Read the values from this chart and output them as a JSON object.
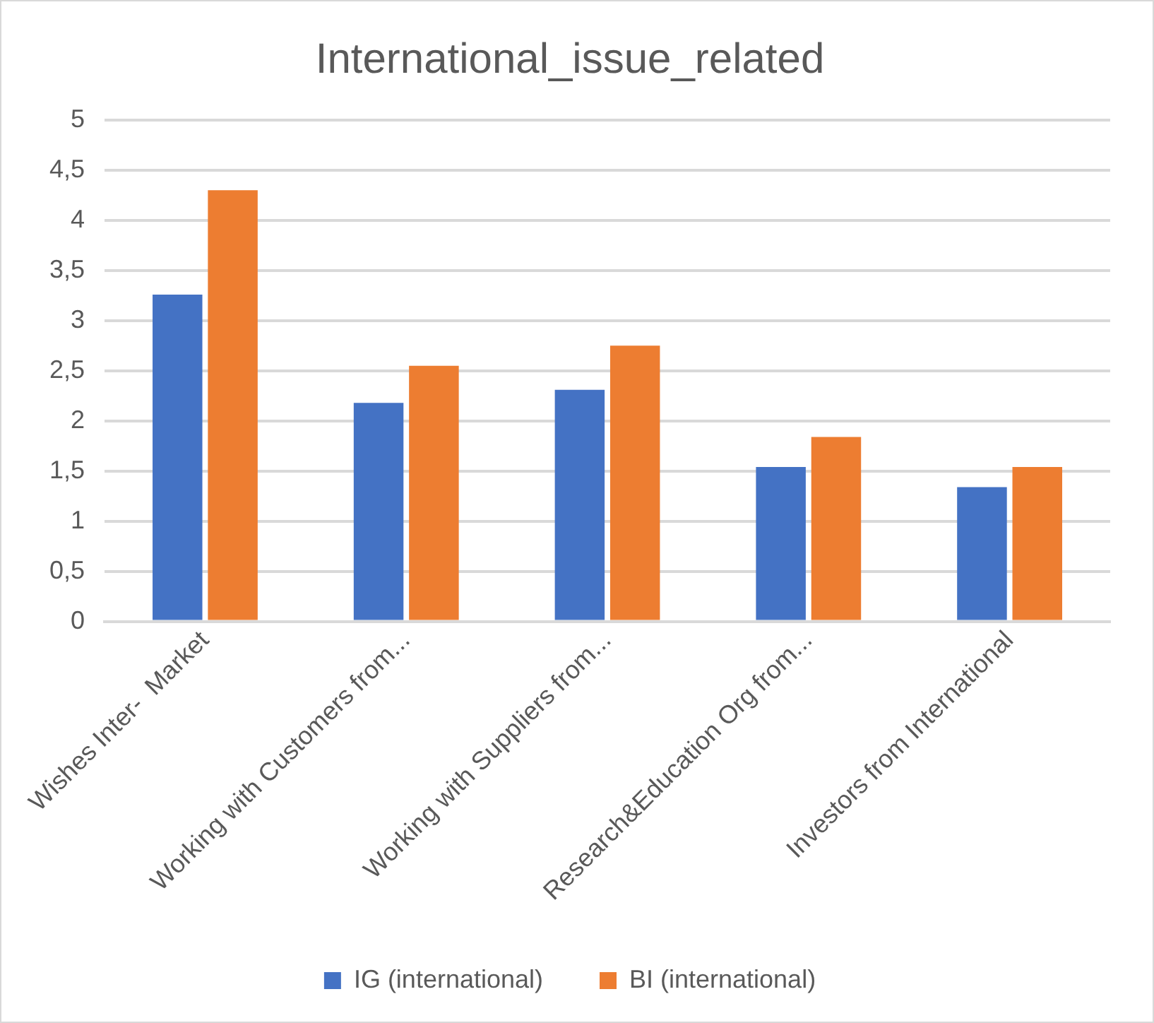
{
  "chart_data": {
    "type": "bar",
    "title": "International_issue_related",
    "categories": [
      "Wishes Inter-  Market",
      "Working with Customers from...",
      "Working with Suppliers from...",
      "Research&Education Org from...",
      "Investors from International"
    ],
    "series": [
      {
        "name": "IG (international)",
        "color": "#4472c4",
        "values": [
          3.26,
          2.18,
          2.31,
          1.54,
          1.34
        ]
      },
      {
        "name": "BI (international)",
        "color": "#ed7d31",
        "values": [
          4.3,
          2.55,
          2.75,
          1.84,
          1.54
        ]
      }
    ],
    "ylim": [
      0,
      5
    ],
    "yticks": [
      0,
      {
        "value": 0.5,
        "label": "0,5"
      },
      1,
      {
        "value": 1.5,
        "label": "1,5"
      },
      2,
      {
        "value": 2.5,
        "label": "2,5"
      },
      3,
      {
        "value": 3.5,
        "label": "3,5"
      },
      4,
      {
        "value": 4.5,
        "label": "4,5"
      },
      5
    ],
    "grid": "y",
    "legend": "bottom"
  }
}
